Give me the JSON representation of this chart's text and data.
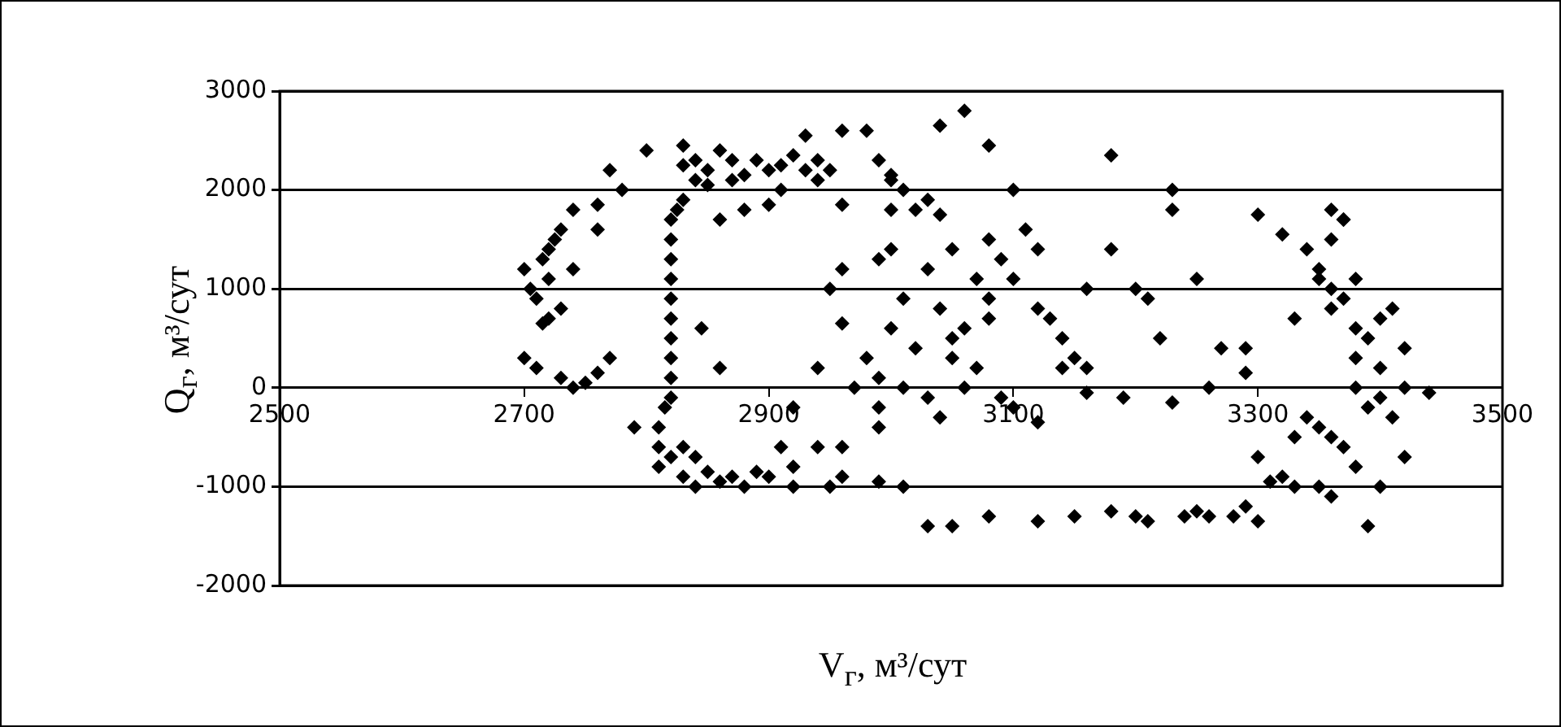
{
  "chart_data": {
    "type": "scatter",
    "xlabel": "V$_{г}$, м³/сут",
    "ylabel": "Q$_{г}$, м³/сут",
    "xlim": [
      2500,
      3500
    ],
    "xticks": [
      2500,
      2700,
      2900,
      3100,
      3300,
      3500
    ],
    "ylim": [
      -2000,
      3000
    ],
    "yticks": [
      -2000,
      -1000,
      0,
      1000,
      2000,
      3000
    ],
    "grid": "y",
    "marker": "diamond",
    "series": [
      {
        "color": "#000000",
        "x": [
          2700,
          2705,
          2710,
          2715,
          2720,
          2725,
          2730,
          2740,
          2760,
          2770,
          2720,
          2715,
          2730,
          2700,
          2710,
          2730,
          2740,
          2760,
          2770,
          2720,
          2740,
          2760,
          2780,
          2750,
          2790,
          2810,
          2815,
          2820,
          2820,
          2820,
          2820,
          2820,
          2820,
          2820,
          2820,
          2820,
          2820,
          2825,
          2830,
          2840,
          2845,
          2860,
          2800,
          2830,
          2840,
          2850,
          2860,
          2870,
          2880,
          2890,
          2900,
          2910,
          2920,
          2930,
          2940,
          2850,
          2860,
          2880,
          2900,
          2910,
          2930,
          2950,
          2960,
          2990,
          3000,
          3010,
          3000,
          3030,
          2830,
          2870,
          2940,
          2960,
          2980,
          3000,
          2960,
          2960,
          2980,
          2990,
          3000,
          3020,
          3030,
          3040,
          3050,
          3040,
          3050,
          3060,
          3070,
          3080,
          3080,
          3100,
          3100,
          3110,
          3120,
          3120,
          3130,
          3140,
          3150,
          3160,
          3160,
          3180,
          3180,
          3200,
          3210,
          3220,
          3230,
          3230,
          3250,
          3260,
          3270,
          3290,
          3290,
          3300,
          3320,
          3330,
          3350,
          3360,
          3370,
          3040,
          3060,
          3080,
          3030,
          3040,
          3050,
          3060,
          3010,
          3020,
          2990,
          2990,
          2970,
          2960,
          2920,
          2940,
          2950,
          3000,
          3010,
          2990,
          3090,
          3100,
          3120,
          3090,
          3070,
          3080,
          3140,
          3190,
          3230,
          3160,
          3340,
          3360,
          3370,
          3350,
          3360,
          3370,
          3380,
          3360,
          3380,
          3390,
          3400,
          3410,
          3380,
          3400,
          3420,
          3380,
          3390,
          3400,
          3410,
          3420,
          3440,
          3350,
          3360,
          3370,
          3330,
          3340,
          3380,
          3420,
          3300,
          3320,
          3360,
          3390,
          3400,
          2810,
          2820,
          2830,
          2840,
          2850,
          2860,
          2870,
          2880,
          2890,
          2830,
          2840,
          2900,
          2920,
          2920,
          2940,
          2950,
          2960,
          2990,
          3010,
          2810,
          3030,
          3050,
          3080,
          3120,
          3150,
          3180,
          3200,
          3210,
          3240,
          3260,
          3290,
          3300,
          3310,
          3330,
          3350,
          3280,
          2910,
          3250
        ],
        "values": [
          1200,
          1000,
          900,
          1300,
          1400,
          1500,
          1600,
          1800,
          1850,
          2200,
          700,
          650,
          800,
          300,
          200,
          100,
          0,
          150,
          300,
          1100,
          1200,
          1600,
          2000,
          50,
          -400,
          -400,
          -200,
          1700,
          1500,
          1300,
          1100,
          900,
          700,
          500,
          300,
          100,
          -100,
          1800,
          1900,
          2100,
          600,
          200,
          2400,
          2450,
          2300,
          2200,
          2400,
          2300,
          2150,
          2300,
          2200,
          2250,
          2350,
          2200,
          2100,
          2050,
          1700,
          1800,
          1850,
          2000,
          2550,
          2200,
          2600,
          2300,
          2150,
          2000,
          1800,
          1900,
          2250,
          2100,
          2300,
          1850,
          2600,
          2100,
          1200,
          650,
          300,
          1300,
          600,
          1800,
          1200,
          1750,
          1400,
          800,
          500,
          0,
          200,
          900,
          1500,
          2000,
          1100,
          1600,
          1400,
          800,
          700,
          500,
          300,
          200,
          1000,
          1400,
          2350,
          1000,
          900,
          500,
          2000,
          1800,
          1100,
          0,
          400,
          150,
          400,
          1750,
          1550,
          700,
          1100,
          1800,
          1700,
          2650,
          2800,
          2450,
          -100,
          -300,
          300,
          600,
          900,
          400,
          100,
          -200,
          0,
          -600,
          -200,
          200,
          1000,
          1400,
          0,
          -400,
          1300,
          -200,
          -350,
          -100,
          1100,
          700,
          200,
          -100,
          -150,
          -50,
          1400,
          1500,
          1700,
          1200,
          1000,
          900,
          1100,
          800,
          600,
          500,
          700,
          800,
          300,
          200,
          400,
          0,
          -200,
          -100,
          -300,
          0,
          -50,
          -400,
          -500,
          -600,
          -500,
          -300,
          -800,
          -700,
          -700,
          -900,
          -1100,
          -1400,
          -1000,
          -800,
          -700,
          -900,
          -1000,
          -850,
          -950,
          -900,
          -1000,
          -850,
          -600,
          -700,
          -900,
          -1000,
          -800,
          -600,
          -1000,
          -900,
          -950,
          -1000,
          -600,
          -1400,
          -1400,
          -1300,
          -1350,
          -1300,
          -1250,
          -1300,
          -1350,
          -1300,
          -1300,
          -1200,
          -1350,
          -950,
          -1000,
          -1000,
          -1300,
          -600,
          -1250
        ]
      }
    ]
  }
}
